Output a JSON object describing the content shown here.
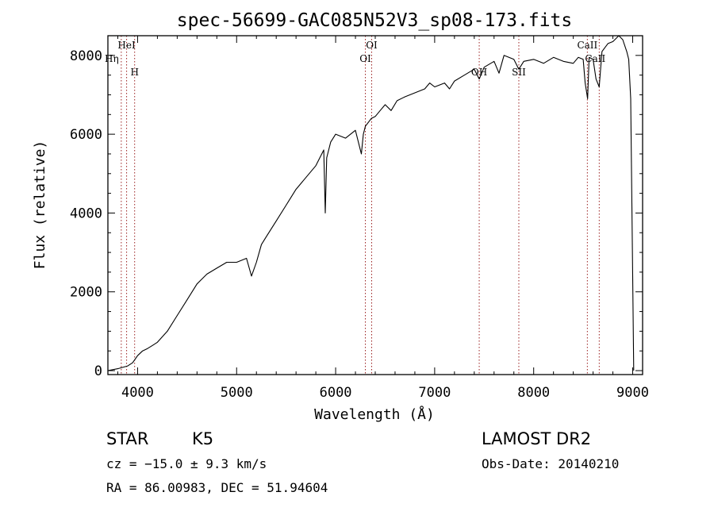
{
  "chart_data": {
    "type": "line",
    "title": "spec-56699-GAC085N52V3_sp08-173.fits",
    "xlabel": "Wavelength (Å)",
    "ylabel": "Flux (relative)",
    "xlim": [
      3700,
      9100
    ],
    "ylim": [
      -100,
      8500
    ],
    "xticks": [
      4000,
      5000,
      6000,
      7000,
      8000,
      9000
    ],
    "yticks": [
      0,
      2000,
      4000,
      6000,
      8000
    ],
    "series": [
      {
        "name": "flux",
        "x": [
          3700,
          3800,
          3900,
          3950,
          4000,
          4050,
          4100,
          4150,
          4200,
          4300,
          4400,
          4500,
          4600,
          4700,
          4800,
          4900,
          5000,
          5100,
          5150,
          5200,
          5250,
          5300,
          5400,
          5500,
          5600,
          5700,
          5800,
          5880,
          5895,
          5910,
          5950,
          6000,
          6100,
          6200,
          6260,
          6280,
          6300,
          6360,
          6400,
          6450,
          6500,
          6560,
          6620,
          6700,
          6800,
          6900,
          6950,
          7000,
          7100,
          7150,
          7200,
          7300,
          7400,
          7450,
          7500,
          7600,
          7650,
          7700,
          7800,
          7850,
          7900,
          8000,
          8100,
          8200,
          8300,
          8400,
          8450,
          8500,
          8520,
          8545,
          8560,
          8600,
          8630,
          8662,
          8690,
          8750,
          8800,
          8860,
          8900,
          8940,
          8960,
          8980,
          9000,
          9010
        ],
        "y": [
          0,
          50,
          120,
          200,
          380,
          500,
          560,
          640,
          720,
          1000,
          1400,
          1800,
          2200,
          2450,
          2600,
          2750,
          2750,
          2850,
          2400,
          2750,
          3200,
          3400,
          3800,
          4200,
          4600,
          4900,
          5200,
          5600,
          4000,
          5400,
          5800,
          6000,
          5900,
          6100,
          5500,
          6000,
          6200,
          6400,
          6450,
          6600,
          6750,
          6600,
          6850,
          6950,
          7050,
          7150,
          7300,
          7200,
          7300,
          7150,
          7350,
          7500,
          7650,
          7400,
          7700,
          7850,
          7550,
          8000,
          7900,
          7650,
          7850,
          7900,
          7800,
          7950,
          7850,
          7800,
          7950,
          7900,
          7300,
          6900,
          7950,
          7900,
          7400,
          7200,
          8100,
          8300,
          8350,
          8500,
          8400,
          8100,
          7900,
          6900,
          2400,
          0
        ]
      }
    ],
    "lines": [
      {
        "label": "Hη",
        "x": 3835
      },
      {
        "label": "HeI",
        "x": 3889
      },
      {
        "label": "H",
        "x": 3970
      },
      {
        "label": "OI",
        "x": 6300
      },
      {
        "label": "OI",
        "x": 6364
      },
      {
        "label": "OH",
        "x": 7450
      },
      {
        "label": "SII",
        "x": 7850
      },
      {
        "label": "CaII",
        "x": 8542
      },
      {
        "label": "CaII",
        "x": 8662
      }
    ]
  },
  "info": {
    "object_class": "STAR",
    "subclass": "K5",
    "release": "LAMOST DR2",
    "cz": "cz = −15.0 ± 9.3 km/s",
    "obs_date": "Obs-Date: 20140210",
    "coords": "RA =  86.00983, DEC =  51.94604"
  }
}
